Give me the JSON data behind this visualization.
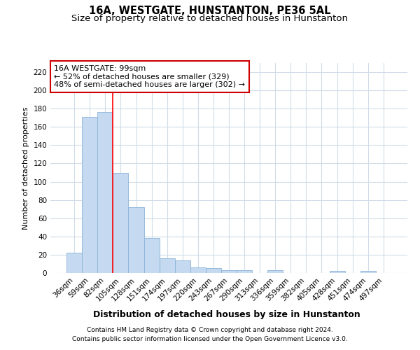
{
  "title": "16A, WESTGATE, HUNSTANTON, PE36 5AL",
  "subtitle": "Size of property relative to detached houses in Hunstanton",
  "xlabel": "Distribution of detached houses by size in Hunstanton",
  "ylabel": "Number of detached properties",
  "categories": [
    "36sqm",
    "59sqm",
    "82sqm",
    "105sqm",
    "128sqm",
    "151sqm",
    "174sqm",
    "197sqm",
    "220sqm",
    "243sqm",
    "267sqm",
    "290sqm",
    "313sqm",
    "336sqm",
    "359sqm",
    "382sqm",
    "405sqm",
    "428sqm",
    "451sqm",
    "474sqm",
    "497sqm"
  ],
  "values": [
    22,
    171,
    176,
    110,
    72,
    38,
    16,
    14,
    6,
    5,
    3,
    3,
    0,
    3,
    0,
    0,
    0,
    2,
    0,
    2,
    0
  ],
  "bar_color": "#c5d9f0",
  "bar_edge_color": "#8ab4d8",
  "property_line_x": 2.5,
  "annotation_line1": "16A WESTGATE: 99sqm",
  "annotation_line2": "← 52% of detached houses are smaller (329)",
  "annotation_line3": "48% of semi-detached houses are larger (302) →",
  "annotation_box_color": "#ffffff",
  "annotation_box_edge": "#cc0000",
  "background_color": "#ffffff",
  "grid_color": "#d0dce8",
  "ylim": [
    0,
    230
  ],
  "yticks": [
    0,
    20,
    40,
    60,
    80,
    100,
    120,
    140,
    160,
    180,
    200,
    220
  ],
  "footer1": "Contains HM Land Registry data © Crown copyright and database right 2024.",
  "footer2": "Contains public sector information licensed under the Open Government Licence v3.0.",
  "title_fontsize": 10.5,
  "subtitle_fontsize": 9.5,
  "xlabel_fontsize": 9,
  "ylabel_fontsize": 8,
  "tick_fontsize": 7.5,
  "annot_fontsize": 8,
  "footer_fontsize": 6.5
}
